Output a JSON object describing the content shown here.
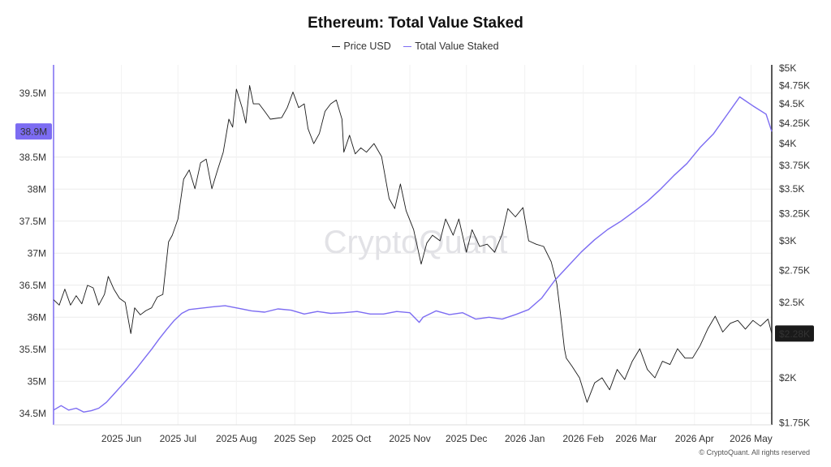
{
  "chart_data": {
    "type": "line",
    "title": "Ethereum: Total Value Staked",
    "legend": [
      "Price USD",
      "Total Value Staked"
    ],
    "watermark": "CryptoQuant",
    "copyright": "© CryptoQuant. All rights reserved",
    "x_ticks": [
      "2025 Jun",
      "2025 Jul",
      "2025 Aug",
      "2025 Sep",
      "2025 Oct",
      "2025 Nov",
      "2025 Dec",
      "2026 Jan",
      "2026 Feb",
      "2026 Mar",
      "2026 Apr",
      "2026 May"
    ],
    "x_range": [
      "2025-05-10",
      "2026-05-26"
    ],
    "left_axis": {
      "label": "Total Value Staked",
      "ticks": [
        "39.5M",
        "38.5M",
        "38M",
        "37.5M",
        "37M",
        "36.5M",
        "36M",
        "35.5M",
        "35M",
        "34.5M"
      ],
      "tick_values": [
        39.5,
        38.5,
        38.0,
        37.5,
        37.0,
        36.5,
        36.0,
        35.5,
        35.0,
        34.5
      ],
      "range": [
        34.32,
        39.94
      ],
      "current_label": "38.9M",
      "current_value": 38.9
    },
    "right_axis": {
      "label": "Price USD",
      "ticks": [
        "$5K",
        "$4.75K",
        "$4.5K",
        "$4.25K",
        "$4K",
        "$3.75K",
        "$3.5K",
        "$3.25K",
        "$3K",
        "$2.75K",
        "$2.5K",
        "$2K",
        "$1.75K"
      ],
      "tick_values": [
        5000,
        4750,
        4500,
        4250,
        4000,
        3750,
        3500,
        3250,
        3000,
        2750,
        2500,
        2000,
        1750
      ],
      "scale": "log",
      "range": [
        1740,
        5050
      ],
      "current_label": "$2.28K",
      "current_value": 2280
    },
    "series": [
      {
        "name": "Price USD",
        "axis": "right",
        "color": "#1a1a1a",
        "x": [
          "2025-05-10",
          "2025-05-13",
          "2025-05-16",
          "2025-05-19",
          "2025-05-22",
          "2025-05-25",
          "2025-05-28",
          "2025-05-31",
          "2025-06-03",
          "2025-06-06",
          "2025-06-08",
          "2025-06-11",
          "2025-06-14",
          "2025-06-17",
          "2025-06-20",
          "2025-06-22",
          "2025-06-25",
          "2025-06-28",
          "2025-07-01",
          "2025-07-04",
          "2025-07-07",
          "2025-07-10",
          "2025-07-12",
          "2025-07-15",
          "2025-07-18",
          "2025-07-21",
          "2025-07-24",
          "2025-07-27",
          "2025-07-30",
          "2025-08-02",
          "2025-08-05",
          "2025-08-08",
          "2025-08-11",
          "2025-08-13",
          "2025-08-15",
          "2025-08-18",
          "2025-08-20",
          "2025-08-22",
          "2025-08-24",
          "2025-08-27",
          "2025-08-30",
          "2025-09-02",
          "2025-09-05",
          "2025-09-08",
          "2025-09-11",
          "2025-09-14",
          "2025-09-17",
          "2025-09-20",
          "2025-09-22",
          "2025-09-25",
          "2025-09-28",
          "2025-10-01",
          "2025-10-04",
          "2025-10-07",
          "2025-10-10",
          "2025-10-11",
          "2025-10-14",
          "2025-10-17",
          "2025-10-20",
          "2025-10-23",
          "2025-10-27",
          "2025-10-31",
          "2025-11-04",
          "2025-11-07",
          "2025-11-10",
          "2025-11-13",
          "2025-11-17",
          "2025-11-21",
          "2025-11-24",
          "2025-11-27",
          "2025-12-01",
          "2025-12-04",
          "2025-12-08",
          "2025-12-11",
          "2025-12-15",
          "2025-12-18",
          "2025-12-22",
          "2025-12-26",
          "2025-12-30",
          "2026-01-03",
          "2026-01-06",
          "2026-01-10",
          "2026-01-14",
          "2026-01-17",
          "2026-01-21",
          "2026-01-25",
          "2026-01-29",
          "2026-02-01",
          "2026-02-03",
          "2026-02-05",
          "2026-02-06",
          "2026-02-09",
          "2026-02-13",
          "2026-02-17",
          "2026-02-21",
          "2026-02-25",
          "2026-03-01",
          "2026-03-05",
          "2026-03-09",
          "2026-03-13",
          "2026-03-17",
          "2026-03-21",
          "2026-03-25",
          "2026-03-29",
          "2026-04-02",
          "2026-04-06",
          "2026-04-10",
          "2026-04-14",
          "2026-04-18",
          "2026-04-22",
          "2026-04-26",
          "2026-04-30",
          "2026-05-04",
          "2026-05-08",
          "2026-05-12",
          "2026-05-16",
          "2026-05-20",
          "2026-05-24",
          "2026-05-26"
        ],
        "values": [
          2520,
          2480,
          2600,
          2480,
          2550,
          2490,
          2630,
          2610,
          2480,
          2560,
          2700,
          2600,
          2530,
          2500,
          2280,
          2460,
          2410,
          2440,
          2460,
          2540,
          2560,
          2990,
          3050,
          3200,
          3600,
          3700,
          3500,
          3780,
          3820,
          3500,
          3700,
          3900,
          4300,
          4200,
          4700,
          4450,
          4250,
          4750,
          4500,
          4500,
          4400,
          4300,
          4310,
          4320,
          4450,
          4660,
          4450,
          4500,
          4180,
          4000,
          4120,
          4400,
          4500,
          4550,
          4300,
          3900,
          4100,
          3880,
          3950,
          3900,
          4000,
          3850,
          3400,
          3300,
          3550,
          3280,
          3100,
          2800,
          2980,
          3050,
          3000,
          3200,
          3050,
          3200,
          2900,
          3100,
          2950,
          2970,
          2900,
          3060,
          3300,
          3220,
          3310,
          3000,
          2970,
          2950,
          2820,
          2640,
          2410,
          2180,
          2120,
          2070,
          2000,
          1860,
          1970,
          2000,
          1930,
          2050,
          1990,
          2100,
          2180,
          2050,
          2000,
          2100,
          2080,
          2180,
          2120,
          2120,
          2200,
          2310,
          2400,
          2290,
          2350,
          2370,
          2310,
          2370,
          2330,
          2380,
          2280
        ]
      },
      {
        "name": "Total Value Staked",
        "axis": "left",
        "color": "#7c6cf2",
        "x": [
          "2025-05-10",
          "2025-05-14",
          "2025-05-18",
          "2025-05-22",
          "2025-05-26",
          "2025-05-30",
          "2025-06-03",
          "2025-06-07",
          "2025-06-11",
          "2025-06-15",
          "2025-06-19",
          "2025-06-23",
          "2025-06-27",
          "2025-07-01",
          "2025-07-05",
          "2025-07-09",
          "2025-07-13",
          "2025-07-17",
          "2025-07-21",
          "2025-07-27",
          "2025-08-02",
          "2025-08-09",
          "2025-08-16",
          "2025-08-23",
          "2025-08-30",
          "2025-09-06",
          "2025-09-13",
          "2025-09-20",
          "2025-09-27",
          "2025-10-04",
          "2025-10-11",
          "2025-10-18",
          "2025-10-25",
          "2025-11-01",
          "2025-11-08",
          "2025-11-15",
          "2025-11-20",
          "2025-11-22",
          "2025-11-29",
          "2025-12-06",
          "2025-12-13",
          "2025-12-20",
          "2025-12-27",
          "2026-01-03",
          "2026-01-10",
          "2026-01-17",
          "2026-01-24",
          "2026-01-31",
          "2026-02-07",
          "2026-02-14",
          "2026-02-21",
          "2026-02-28",
          "2026-03-07",
          "2026-03-14",
          "2026-03-21",
          "2026-03-28",
          "2026-04-04",
          "2026-04-11",
          "2026-04-18",
          "2026-04-25",
          "2026-05-02",
          "2026-05-09",
          "2026-05-16",
          "2026-05-23",
          "2026-05-26"
        ],
        "values": [
          34.55,
          34.62,
          34.55,
          34.58,
          34.52,
          34.54,
          34.58,
          34.67,
          34.8,
          34.93,
          35.06,
          35.2,
          35.35,
          35.5,
          35.66,
          35.81,
          35.95,
          36.06,
          36.12,
          36.14,
          36.16,
          36.18,
          36.14,
          36.1,
          36.08,
          36.13,
          36.11,
          36.05,
          36.09,
          36.06,
          36.07,
          36.09,
          36.05,
          36.05,
          36.09,
          36.07,
          35.92,
          36.0,
          36.1,
          36.04,
          36.07,
          35.97,
          36.0,
          35.97,
          36.04,
          36.12,
          36.3,
          36.58,
          36.8,
          37.02,
          37.21,
          37.37,
          37.5,
          37.65,
          37.81,
          38.0,
          38.21,
          38.4,
          38.65,
          38.86,
          39.15,
          39.44,
          39.3,
          39.17,
          38.9
        ]
      }
    ]
  }
}
